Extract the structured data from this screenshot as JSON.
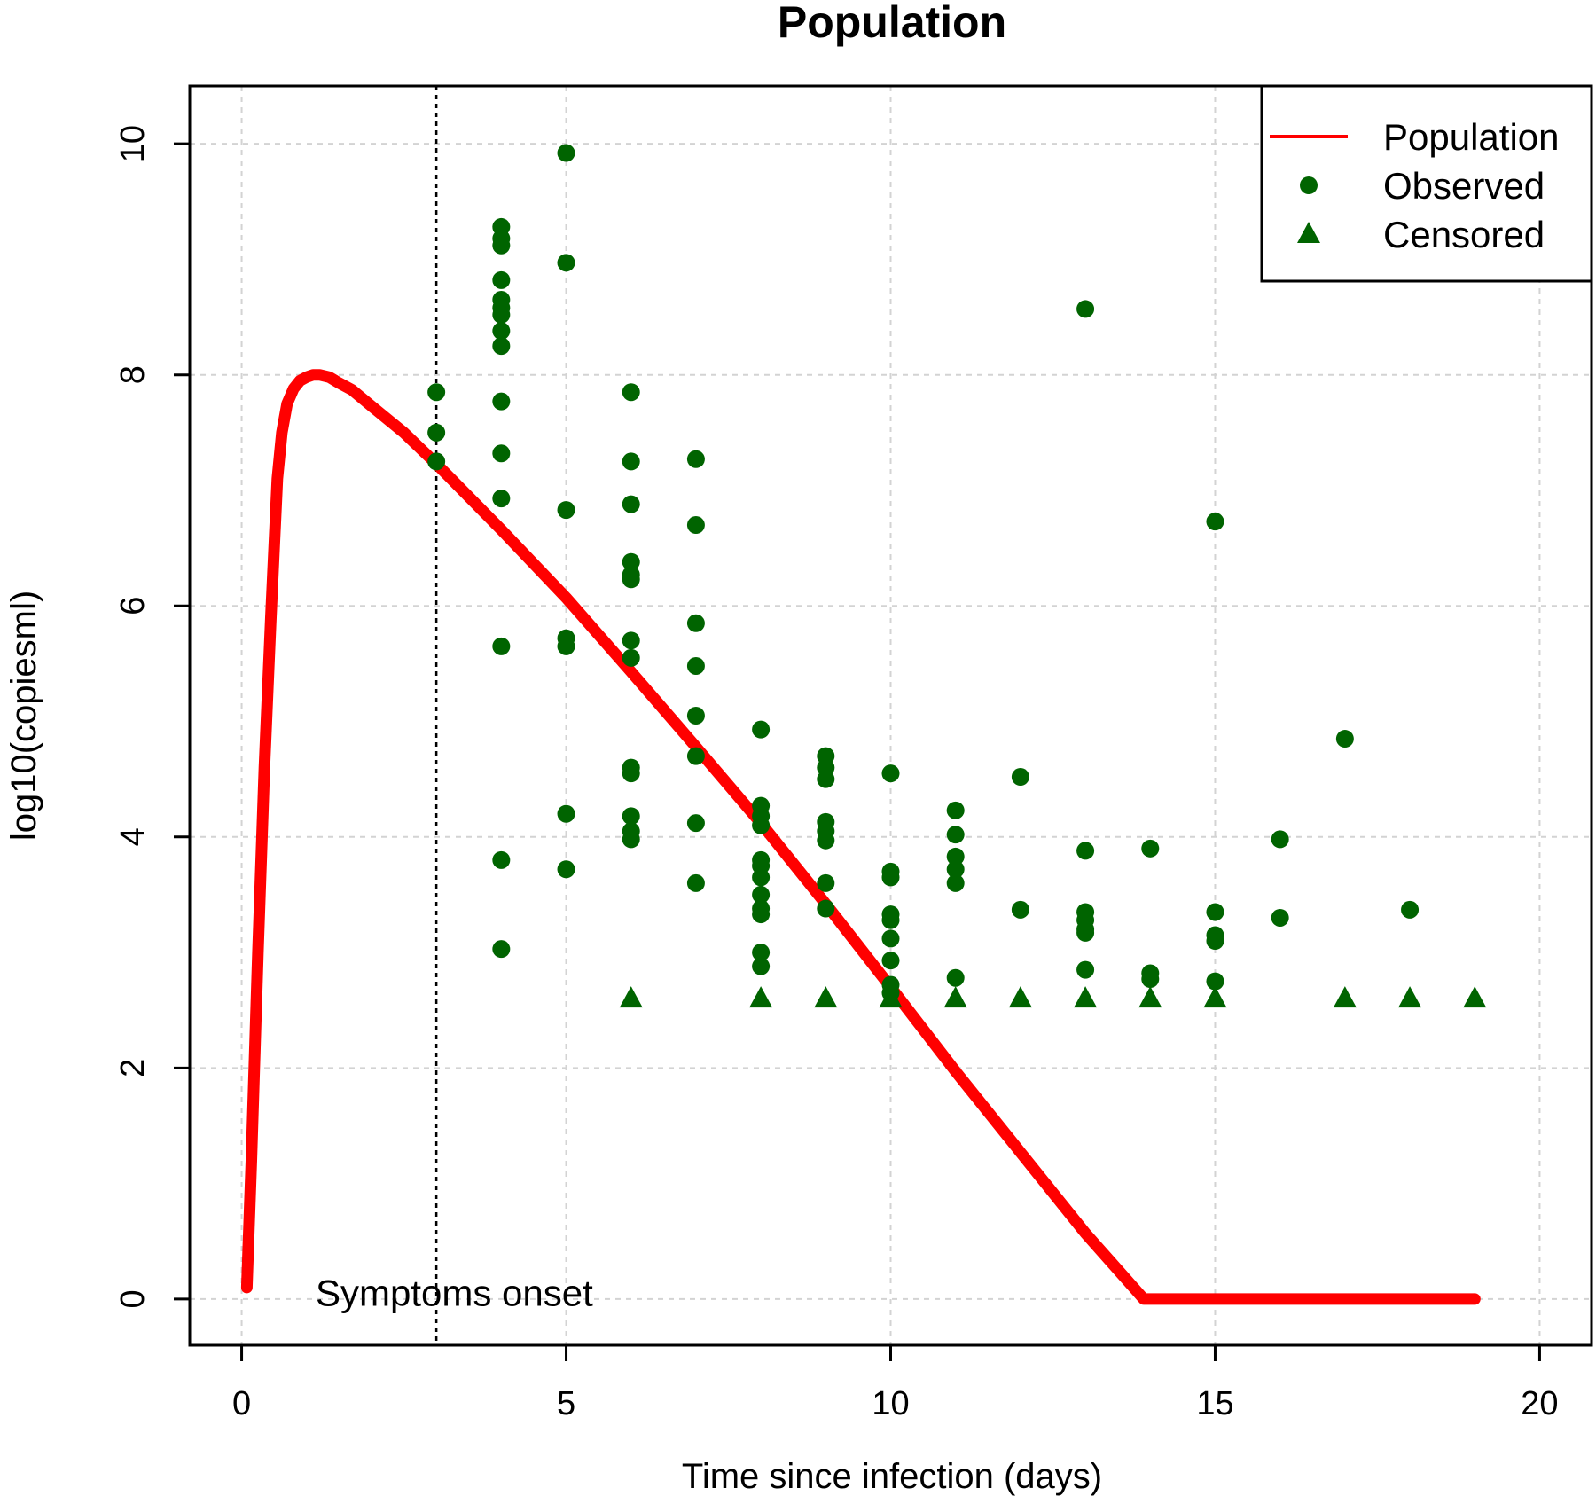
{
  "chart_data": {
    "type": "scatter",
    "title": "Population",
    "xlabel": "Time since infection (days)",
    "ylabel": "log10(copiesml)",
    "xlim": [
      -0.8,
      20.8
    ],
    "ylim": [
      -0.4,
      10.5
    ],
    "x_ticks": [
      0,
      5,
      10,
      15,
      20
    ],
    "y_ticks": [
      0,
      2,
      4,
      6,
      8,
      10
    ],
    "grid": true,
    "legend_position": "top-right",
    "colors": {
      "population": "#ff0000",
      "observed": "#006400",
      "censored": "#006400",
      "grid": "#d3d3d3",
      "onset_line": "#000000"
    },
    "legend": [
      {
        "label": "Population",
        "marker": "line"
      },
      {
        "label": "Observed",
        "marker": "circle"
      },
      {
        "label": "Censored",
        "marker": "triangle"
      }
    ],
    "annotations": [
      {
        "text": "Symptoms onset",
        "x": 3,
        "y": 0.05,
        "vertical_line_x": 3
      }
    ],
    "series": [
      {
        "name": "Population",
        "type": "line",
        "x": [
          0.08,
          0.15,
          0.25,
          0.35,
          0.45,
          0.55,
          0.62,
          0.7,
          0.8,
          0.9,
          1.0,
          1.1,
          1.2,
          1.35,
          1.5,
          1.7,
          2.0,
          2.5,
          3.0,
          4.0,
          5.0,
          6.0,
          7.0,
          8.0,
          9.0,
          10.0,
          11.0,
          12.0,
          13.0,
          13.9,
          14.5,
          16.0,
          17.0,
          18.0,
          19.0
        ],
        "y": [
          0.1,
          1.2,
          3.0,
          4.6,
          5.9,
          7.1,
          7.5,
          7.75,
          7.88,
          7.95,
          7.98,
          8.0,
          8.0,
          7.98,
          7.93,
          7.87,
          7.73,
          7.5,
          7.23,
          6.66,
          6.07,
          5.43,
          4.78,
          4.12,
          3.42,
          2.7,
          1.97,
          1.27,
          0.57,
          0.0,
          0.0,
          0.0,
          0.0,
          0.0,
          0.0
        ]
      },
      {
        "name": "Observed",
        "type": "scatter",
        "marker": "circle",
        "points": [
          [
            3,
            7.85
          ],
          [
            3,
            7.5
          ],
          [
            3,
            7.25
          ],
          [
            4,
            9.28
          ],
          [
            4,
            9.18
          ],
          [
            4,
            9.12
          ],
          [
            4,
            8.82
          ],
          [
            4,
            8.65
          ],
          [
            4,
            8.58
          ],
          [
            4,
            8.52
          ],
          [
            4,
            8.38
          ],
          [
            4,
            8.25
          ],
          [
            4,
            7.77
          ],
          [
            4,
            7.32
          ],
          [
            4,
            6.93
          ],
          [
            4,
            5.65
          ],
          [
            4,
            3.8
          ],
          [
            4,
            3.03
          ],
          [
            5,
            9.92
          ],
          [
            5,
            8.97
          ],
          [
            5,
            6.83
          ],
          [
            5,
            5.72
          ],
          [
            5,
            5.65
          ],
          [
            5,
            4.2
          ],
          [
            5,
            3.72
          ],
          [
            6,
            7.85
          ],
          [
            6,
            7.25
          ],
          [
            6,
            6.88
          ],
          [
            6,
            6.38
          ],
          [
            6,
            6.27
          ],
          [
            6,
            6.23
          ],
          [
            6,
            5.7
          ],
          [
            6,
            5.55
          ],
          [
            6,
            4.6
          ],
          [
            6,
            4.55
          ],
          [
            6,
            4.18
          ],
          [
            6,
            4.05
          ],
          [
            6,
            3.98
          ],
          [
            7,
            7.27
          ],
          [
            7,
            6.7
          ],
          [
            7,
            5.85
          ],
          [
            7,
            5.48
          ],
          [
            7,
            5.05
          ],
          [
            7,
            4.7
          ],
          [
            7,
            4.12
          ],
          [
            7,
            3.6
          ],
          [
            8,
            4.93
          ],
          [
            8,
            4.27
          ],
          [
            8,
            4.18
          ],
          [
            8,
            4.1
          ],
          [
            8,
            3.8
          ],
          [
            8,
            3.75
          ],
          [
            8,
            3.65
          ],
          [
            8,
            3.5
          ],
          [
            8,
            3.38
          ],
          [
            8,
            3.33
          ],
          [
            8,
            3.0
          ],
          [
            8,
            2.88
          ],
          [
            9,
            4.7
          ],
          [
            9,
            4.6
          ],
          [
            9,
            4.5
          ],
          [
            9,
            4.13
          ],
          [
            9,
            4.05
          ],
          [
            9,
            3.97
          ],
          [
            9,
            3.6
          ],
          [
            9,
            3.38
          ],
          [
            10,
            4.55
          ],
          [
            10,
            3.7
          ],
          [
            10,
            3.65
          ],
          [
            10,
            3.33
          ],
          [
            10,
            3.28
          ],
          [
            10,
            3.12
          ],
          [
            10,
            2.93
          ],
          [
            10,
            2.72
          ],
          [
            10,
            2.65
          ],
          [
            11,
            4.23
          ],
          [
            11,
            4.02
          ],
          [
            11,
            3.83
          ],
          [
            11,
            3.72
          ],
          [
            11,
            3.6
          ],
          [
            11,
            2.78
          ],
          [
            12,
            4.52
          ],
          [
            12,
            3.37
          ],
          [
            13,
            8.57
          ],
          [
            13,
            3.88
          ],
          [
            13,
            3.35
          ],
          [
            13,
            3.28
          ],
          [
            13,
            3.2
          ],
          [
            13,
            3.17
          ],
          [
            13,
            2.85
          ],
          [
            14,
            3.9
          ],
          [
            14,
            2.82
          ],
          [
            14,
            2.77
          ],
          [
            15,
            6.73
          ],
          [
            15,
            3.35
          ],
          [
            15,
            3.15
          ],
          [
            15,
            3.1
          ],
          [
            15,
            2.75
          ],
          [
            16,
            3.98
          ],
          [
            16,
            3.3
          ],
          [
            17,
            4.85
          ],
          [
            18,
            3.37
          ]
        ]
      },
      {
        "name": "Censored",
        "type": "scatter",
        "marker": "triangle",
        "points": [
          [
            6,
            2.6
          ],
          [
            8,
            2.6
          ],
          [
            9,
            2.6
          ],
          [
            10,
            2.6
          ],
          [
            11,
            2.6
          ],
          [
            12,
            2.6
          ],
          [
            13,
            2.6
          ],
          [
            14,
            2.6
          ],
          [
            15,
            2.6
          ],
          [
            17,
            2.6
          ],
          [
            18,
            2.6
          ],
          [
            19,
            2.6
          ]
        ]
      }
    ]
  }
}
